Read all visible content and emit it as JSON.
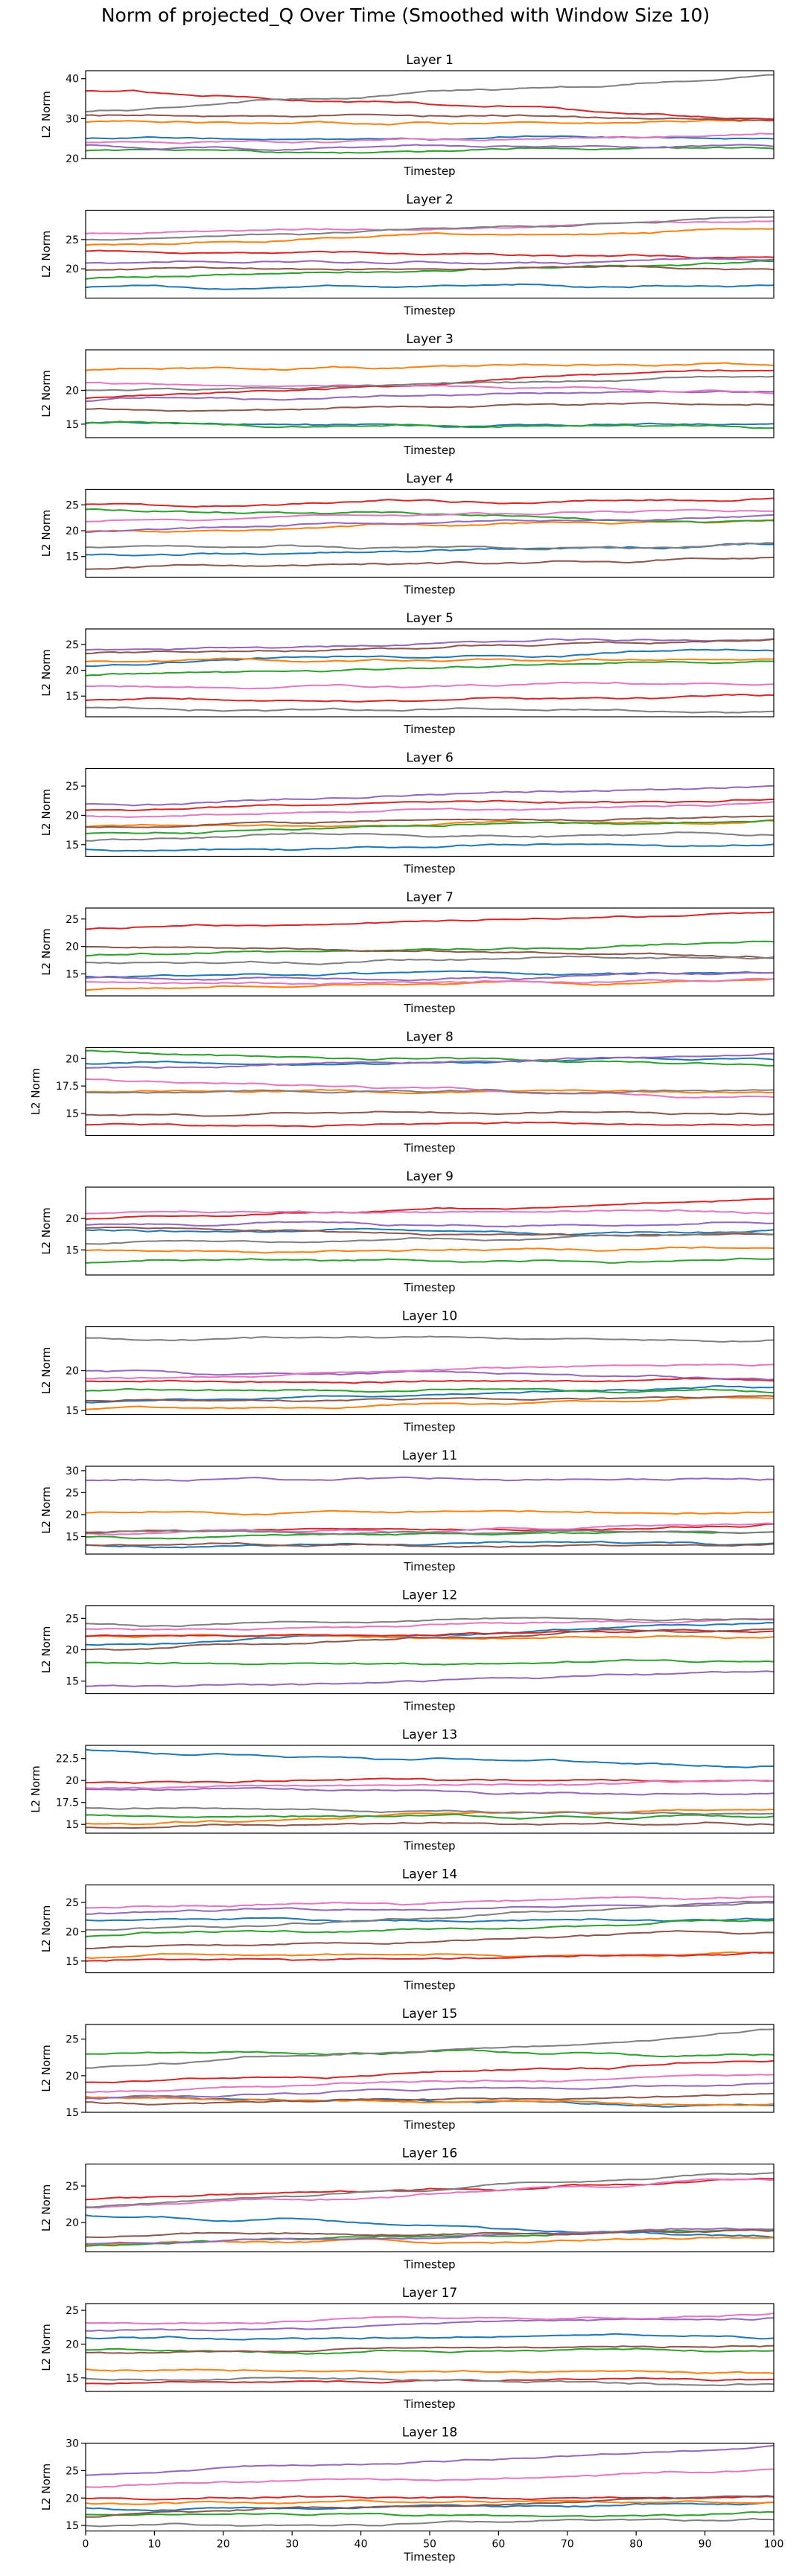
{
  "figure_title": "Norm of projected_Q Over Time (Smoothed with Window Size 10)",
  "colors": [
    "#1f77b4",
    "#ff7f0e",
    "#2ca02c",
    "#d62728",
    "#9467bd",
    "#8c564b",
    "#e377c2",
    "#7f7f7f"
  ],
  "chart_data": [
    {
      "type": "line",
      "title": "Layer 1",
      "xlabel": "Timestep",
      "ylabel": "L2 Norm",
      "xlim": [
        0,
        100
      ],
      "ylim": [
        20,
        42
      ],
      "yticks": [
        20,
        30,
        40
      ],
      "x_ticks_shown": false,
      "grid": false,
      "legend": "none",
      "series": [
        {
          "values": [
            25,
            25
          ]
        },
        {
          "values": [
            28.5,
            29.5
          ]
        },
        {
          "values": [
            22,
            22.5
          ]
        },
        {
          "values": [
            37,
            30
          ]
        },
        {
          "values": [
            23,
            23
          ]
        },
        {
          "values": [
            31,
            30
          ]
        },
        {
          "values": [
            24,
            26
          ]
        },
        {
          "values": [
            32,
            40.5
          ]
        }
      ]
    },
    {
      "type": "line",
      "title": "Layer 2",
      "xlabel": "Timestep",
      "ylabel": "L2 Norm",
      "xlim": [
        0,
        100
      ],
      "ylim": [
        15,
        30
      ],
      "yticks": [
        20,
        25
      ],
      "x_ticks_shown": false,
      "grid": false,
      "legend": "none",
      "series": [
        {
          "values": [
            17,
            17
          ]
        },
        {
          "values": [
            24,
            27
          ]
        },
        {
          "values": [
            18.5,
            21
          ]
        },
        {
          "values": [
            23,
            22
          ]
        },
        {
          "values": [
            21,
            21.5
          ]
        },
        {
          "values": [
            20,
            20
          ]
        },
        {
          "values": [
            26,
            28
          ]
        },
        {
          "values": [
            25,
            28.5
          ]
        }
      ]
    },
    {
      "type": "line",
      "title": "Layer 3",
      "xlabel": "Timestep",
      "ylabel": "L2 Norm",
      "xlim": [
        0,
        100
      ],
      "ylim": [
        13,
        26
      ],
      "yticks": [
        15,
        20
      ],
      "x_ticks_shown": false,
      "grid": false,
      "legend": "none",
      "series": [
        {
          "values": [
            15,
            15
          ]
        },
        {
          "values": [
            23,
            24
          ]
        },
        {
          "values": [
            15,
            14.5
          ]
        },
        {
          "values": [
            19,
            23
          ]
        },
        {
          "values": [
            18.5,
            20
          ]
        },
        {
          "values": [
            17,
            18
          ]
        },
        {
          "values": [
            21,
            20
          ]
        },
        {
          "values": [
            20,
            22
          ]
        }
      ]
    },
    {
      "type": "line",
      "title": "Layer 4",
      "xlabel": "Timestep",
      "ylabel": "L2 Norm",
      "xlim": [
        0,
        100
      ],
      "ylim": [
        11,
        28
      ],
      "yticks": [
        15,
        20,
        25
      ],
      "x_ticks_shown": false,
      "grid": false,
      "legend": "none",
      "series": [
        {
          "values": [
            15,
            17.5
          ]
        },
        {
          "values": [
            20,
            22
          ]
        },
        {
          "values": [
            24,
            22
          ]
        },
        {
          "values": [
            25,
            26
          ]
        },
        {
          "values": [
            20,
            23
          ]
        },
        {
          "values": [
            13,
            14.5
          ]
        },
        {
          "values": [
            22,
            24
          ]
        },
        {
          "values": [
            17,
            17
          ]
        }
      ]
    },
    {
      "type": "line",
      "title": "Layer 5",
      "xlabel": "Timestep",
      "ylabel": "L2 Norm",
      "xlim": [
        0,
        100
      ],
      "ylim": [
        11,
        28
      ],
      "yticks": [
        15,
        20,
        25
      ],
      "x_ticks_shown": false,
      "grid": false,
      "legend": "none",
      "series": [
        {
          "values": [
            21,
            24
          ]
        },
        {
          "values": [
            22,
            22
          ]
        },
        {
          "values": [
            19,
            22
          ]
        },
        {
          "values": [
            14,
            15
          ]
        },
        {
          "values": [
            24,
            26
          ]
        },
        {
          "values": [
            23,
            26
          ]
        },
        {
          "values": [
            17,
            17
          ]
        },
        {
          "values": [
            12.5,
            12.5
          ]
        }
      ]
    },
    {
      "type": "line",
      "title": "Layer 6",
      "xlabel": "Timestep",
      "ylabel": "L2 Norm",
      "xlim": [
        0,
        100
      ],
      "ylim": [
        13,
        28
      ],
      "yticks": [
        15,
        20,
        25
      ],
      "x_ticks_shown": false,
      "grid": false,
      "legend": "none",
      "series": [
        {
          "values": [
            14,
            15
          ]
        },
        {
          "values": [
            18,
            19
          ]
        },
        {
          "values": [
            17,
            19
          ]
        },
        {
          "values": [
            21,
            23
          ]
        },
        {
          "values": [
            22,
            25
          ]
        },
        {
          "values": [
            18,
            20
          ]
        },
        {
          "values": [
            20,
            22
          ]
        },
        {
          "values": [
            16,
            17
          ]
        }
      ]
    },
    {
      "type": "line",
      "title": "Layer 7",
      "xlabel": "Timestep",
      "ylabel": "L2 Norm",
      "xlim": [
        0,
        100
      ],
      "ylim": [
        11,
        27
      ],
      "yticks": [
        15,
        20,
        25
      ],
      "x_ticks_shown": false,
      "grid": false,
      "legend": "none",
      "series": [
        {
          "values": [
            15,
            15
          ]
        },
        {
          "values": [
            12,
            14
          ]
        },
        {
          "values": [
            18.5,
            20.5
          ]
        },
        {
          "values": [
            23,
            26
          ]
        },
        {
          "values": [
            14,
            15
          ]
        },
        {
          "values": [
            20,
            18
          ]
        },
        {
          "values": [
            13,
            14
          ]
        },
        {
          "values": [
            17,
            18
          ]
        }
      ]
    },
    {
      "type": "line",
      "title": "Layer 8",
      "xlabel": "Timestep",
      "ylabel": "L2 Norm",
      "xlim": [
        0,
        100
      ],
      "ylim": [
        13,
        21
      ],
      "yticks": [
        15.0,
        17.5,
        20.0
      ],
      "x_ticks_shown": false,
      "grid": false,
      "legend": "none",
      "series": [
        {
          "values": [
            19.5,
            20
          ]
        },
        {
          "values": [
            17,
            17
          ]
        },
        {
          "values": [
            20.5,
            19.5
          ]
        },
        {
          "values": [
            14,
            14
          ]
        },
        {
          "values": [
            19,
            20.5
          ]
        },
        {
          "values": [
            15,
            15
          ]
        },
        {
          "values": [
            18,
            16.5
          ]
        },
        {
          "values": [
            17,
            17
          ]
        }
      ]
    },
    {
      "type": "line",
      "title": "Layer 9",
      "xlabel": "Timestep",
      "ylabel": "L2 Norm",
      "xlim": [
        0,
        100
      ],
      "ylim": [
        11,
        25
      ],
      "yticks": [
        15,
        20
      ],
      "x_ticks_shown": false,
      "grid": false,
      "legend": "none",
      "series": [
        {
          "values": [
            18,
            18
          ]
        },
        {
          "values": [
            15,
            15
          ]
        },
        {
          "values": [
            13,
            13.5
          ]
        },
        {
          "values": [
            20,
            23
          ]
        },
        {
          "values": [
            19,
            19
          ]
        },
        {
          "values": [
            18.5,
            17
          ]
        },
        {
          "values": [
            21,
            21
          ]
        },
        {
          "values": [
            16,
            17.5
          ]
        }
      ]
    },
    {
      "type": "line",
      "title": "Layer 10",
      "xlabel": "Timestep",
      "ylabel": "L2 Norm",
      "xlim": [
        0,
        100
      ],
      "ylim": [
        14.5,
        25.5
      ],
      "yticks": [
        15,
        20
      ],
      "x_ticks_shown": false,
      "grid": false,
      "legend": "none",
      "series": [
        {
          "values": [
            16,
            18
          ]
        },
        {
          "values": [
            15,
            16.5
          ]
        },
        {
          "values": [
            17.5,
            17.5
          ]
        },
        {
          "values": [
            18.5,
            19
          ]
        },
        {
          "values": [
            20,
            19
          ]
        },
        {
          "values": [
            16,
            17
          ]
        },
        {
          "values": [
            19,
            21
          ]
        },
        {
          "values": [
            24,
            24
          ]
        }
      ]
    },
    {
      "type": "line",
      "title": "Layer 11",
      "xlabel": "Timestep",
      "ylabel": "L2 Norm",
      "xlim": [
        0,
        100
      ],
      "ylim": [
        11,
        31
      ],
      "yticks": [
        15,
        20,
        25,
        30
      ],
      "x_ticks_shown": false,
      "grid": false,
      "legend": "none",
      "series": [
        {
          "values": [
            13,
            13.5
          ]
        },
        {
          "values": [
            20.5,
            20.5
          ]
        },
        {
          "values": [
            15,
            16
          ]
        },
        {
          "values": [
            16,
            17.5
          ]
        },
        {
          "values": [
            28,
            28
          ]
        },
        {
          "values": [
            13,
            13
          ]
        },
        {
          "values": [
            16,
            17.5
          ]
        },
        {
          "values": [
            16,
            16
          ]
        }
      ]
    },
    {
      "type": "line",
      "title": "Layer 12",
      "xlabel": "Timestep",
      "ylabel": "L2 Norm",
      "xlim": [
        0,
        100
      ],
      "ylim": [
        13,
        27
      ],
      "yticks": [
        15,
        20,
        25
      ],
      "x_ticks_shown": false,
      "grid": false,
      "legend": "none",
      "series": [
        {
          "values": [
            21,
            24
          ]
        },
        {
          "values": [
            22,
            22
          ]
        },
        {
          "values": [
            18,
            18
          ]
        },
        {
          "values": [
            22,
            23
          ]
        },
        {
          "values": [
            14,
            16.5
          ]
        },
        {
          "values": [
            20,
            23.5
          ]
        },
        {
          "values": [
            23,
            25
          ]
        },
        {
          "values": [
            24,
            25
          ]
        }
      ]
    },
    {
      "type": "line",
      "title": "Layer 13",
      "xlabel": "Timestep",
      "ylabel": "L2 Norm",
      "xlim": [
        0,
        100
      ],
      "ylim": [
        14,
        24
      ],
      "yticks": [
        15.0,
        17.5,
        20.0,
        22.5
      ],
      "x_ticks_shown": false,
      "grid": false,
      "legend": "none",
      "series": [
        {
          "values": [
            23.5,
            21.5
          ]
        },
        {
          "values": [
            15,
            17
          ]
        },
        {
          "values": [
            16,
            16
          ]
        },
        {
          "values": [
            20,
            20
          ]
        },
        {
          "values": [
            19,
            18.5
          ]
        },
        {
          "values": [
            15,
            15
          ]
        },
        {
          "values": [
            19,
            20
          ]
        },
        {
          "values": [
            17,
            16
          ]
        }
      ]
    },
    {
      "type": "line",
      "title": "Layer 14",
      "xlabel": "Timestep",
      "ylabel": "L2 Norm",
      "xlim": [
        0,
        100
      ],
      "ylim": [
        13,
        28
      ],
      "yticks": [
        15,
        20,
        25
      ],
      "x_ticks_shown": false,
      "grid": false,
      "legend": "none",
      "series": [
        {
          "values": [
            22,
            22
          ]
        },
        {
          "values": [
            16,
            16
          ]
        },
        {
          "values": [
            19,
            22
          ]
        },
        {
          "values": [
            15,
            16
          ]
        },
        {
          "values": [
            23,
            25
          ]
        },
        {
          "values": [
            17,
            20
          ]
        },
        {
          "values": [
            24,
            26
          ]
        },
        {
          "values": [
            20,
            25
          ]
        }
      ]
    },
    {
      "type": "line",
      "title": "Layer 15",
      "xlabel": "Timestep",
      "ylabel": "L2 Norm",
      "xlim": [
        0,
        100
      ],
      "ylim": [
        15,
        27
      ],
      "yticks": [
        15,
        20,
        25
      ],
      "x_ticks_shown": false,
      "grid": false,
      "legend": "none",
      "series": [
        {
          "values": [
            17,
            16
          ]
        },
        {
          "values": [
            17,
            16
          ]
        },
        {
          "values": [
            23,
            23
          ]
        },
        {
          "values": [
            19,
            22
          ]
        },
        {
          "values": [
            17,
            19
          ]
        },
        {
          "values": [
            16,
            17.5
          ]
        },
        {
          "values": [
            18,
            20
          ]
        },
        {
          "values": [
            21,
            26
          ]
        }
      ]
    },
    {
      "type": "line",
      "title": "Layer 16",
      "xlabel": "Timestep",
      "ylabel": "L2 Norm",
      "xlim": [
        0,
        100
      ],
      "ylim": [
        16,
        28
      ],
      "yticks": [
        20,
        25
      ],
      "x_ticks_shown": false,
      "grid": false,
      "legend": "none",
      "series": [
        {
          "values": [
            21,
            18
          ]
        },
        {
          "values": [
            17,
            18
          ]
        },
        {
          "values": [
            17,
            19
          ]
        },
        {
          "values": [
            23,
            26
          ]
        },
        {
          "values": [
            17,
            19
          ]
        },
        {
          "values": [
            18,
            19
          ]
        },
        {
          "values": [
            22,
            26
          ]
        },
        {
          "values": [
            22,
            27
          ]
        }
      ]
    },
    {
      "type": "line",
      "title": "Layer 17",
      "xlabel": "Timestep",
      "ylabel": "L2 Norm",
      "xlim": [
        0,
        100
      ],
      "ylim": [
        13,
        26
      ],
      "yticks": [
        15,
        20,
        25
      ],
      "x_ticks_shown": false,
      "grid": false,
      "legend": "none",
      "series": [
        {
          "values": [
            21,
            21
          ]
        },
        {
          "values": [
            16,
            16
          ]
        },
        {
          "values": [
            19,
            19
          ]
        },
        {
          "values": [
            14,
            15
          ]
        },
        {
          "values": [
            22,
            24
          ]
        },
        {
          "values": [
            18.5,
            20
          ]
        },
        {
          "values": [
            23,
            24.5
          ]
        },
        {
          "values": [
            15,
            14
          ]
        }
      ]
    },
    {
      "type": "line",
      "title": "Layer 18",
      "xlabel": "Timestep",
      "ylabel": "L2 Norm",
      "xlim": [
        0,
        100
      ],
      "ylim": [
        14,
        30
      ],
      "yticks": [
        15,
        20,
        25,
        30
      ],
      "x_ticks_shown": true,
      "xticks": [
        0,
        10,
        20,
        30,
        40,
        50,
        60,
        70,
        80,
        90,
        100
      ],
      "grid": false,
      "legend": "none",
      "series": [
        {
          "values": [
            18,
            19
          ]
        },
        {
          "values": [
            19,
            19.5
          ]
        },
        {
          "values": [
            17,
            17
          ]
        },
        {
          "values": [
            20,
            20
          ]
        },
        {
          "values": [
            24,
            29.5
          ]
        },
        {
          "values": [
            17,
            20
          ]
        },
        {
          "values": [
            22,
            25
          ]
        },
        {
          "values": [
            15,
            16
          ]
        }
      ]
    }
  ]
}
